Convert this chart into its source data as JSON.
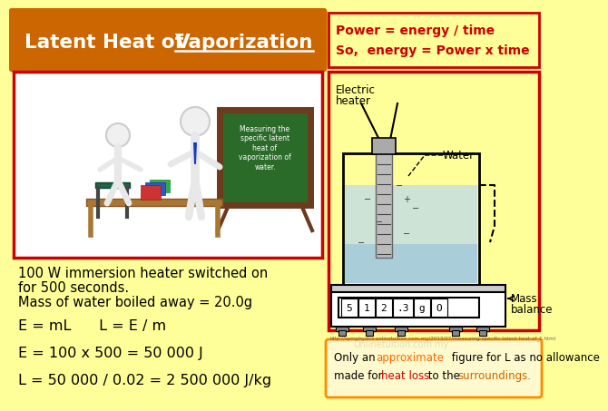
{
  "bg_color": "#FFFF99",
  "title_bg_color": "#CC6600",
  "power_box_border_color": "#CC0000",
  "power_text_color": "#CC0000",
  "left_box_color": "#CC0000",
  "right_box_color": "#CC0000",
  "body_text_color": "#000000",
  "url_text": "http://spmphysics.onlinetultion.com.my/2013/07/measuring-specific-latent-heat-of_6.html",
  "note_box_border_color": "#FF8C00",
  "note_box_bg": "#FFFACD",
  "display_text": "5  1  2  .3  g   O"
}
